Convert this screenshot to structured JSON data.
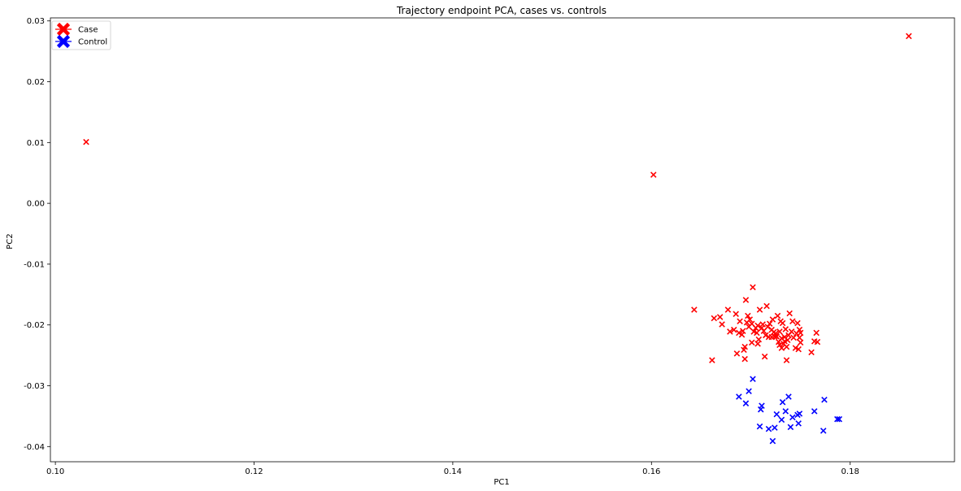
{
  "chart_data": {
    "type": "scatter",
    "title": "Trajectory endpoint PCA, cases vs. controls",
    "xlabel": "PC1",
    "ylabel": "PC2",
    "xlim": [
      0.0995,
      0.1905
    ],
    "ylim": [
      -0.0425,
      0.0305
    ],
    "xticks": [
      {
        "value": 0.1,
        "label": "0.10"
      },
      {
        "value": 0.12,
        "label": "0.12"
      },
      {
        "value": 0.14,
        "label": "0.14"
      },
      {
        "value": 0.16,
        "label": "0.16"
      },
      {
        "value": 0.18,
        "label": "0.18"
      }
    ],
    "yticks": [
      {
        "value": 0.03,
        "label": "0.03"
      },
      {
        "value": 0.02,
        "label": "0.02"
      },
      {
        "value": 0.01,
        "label": "0.01"
      },
      {
        "value": 0.0,
        "label": "0.00"
      },
      {
        "value": -0.01,
        "label": "-0.01"
      },
      {
        "value": -0.02,
        "label": "-0.02"
      },
      {
        "value": -0.03,
        "label": "-0.03"
      },
      {
        "value": -0.04,
        "label": "-0.04"
      }
    ],
    "grid": false,
    "legend_position": "top-left",
    "series": [
      {
        "name": "Case",
        "color": "#ff0000",
        "marker": "x",
        "points": [
          [
            0.1031,
            0.0101
          ],
          [
            0.1602,
            0.0047
          ],
          [
            0.1859,
            0.0275
          ],
          [
            0.1643,
            -0.0175
          ],
          [
            0.1661,
            -0.0258
          ],
          [
            0.1663,
            -0.0189
          ],
          [
            0.1669,
            -0.0187
          ],
          [
            0.1671,
            -0.0199
          ],
          [
            0.1677,
            -0.0175
          ],
          [
            0.1679,
            -0.0211
          ],
          [
            0.1683,
            -0.0208
          ],
          [
            0.1685,
            -0.0182
          ],
          [
            0.1686,
            -0.0247
          ],
          [
            0.1688,
            -0.0213
          ],
          [
            0.1689,
            -0.0194
          ],
          [
            0.1691,
            -0.0216
          ],
          [
            0.1692,
            -0.021
          ],
          [
            0.1693,
            -0.0241
          ],
          [
            0.1694,
            -0.0236
          ],
          [
            0.1694,
            -0.0256
          ],
          [
            0.1695,
            -0.0159
          ],
          [
            0.1696,
            -0.0196
          ],
          [
            0.1697,
            -0.0185
          ],
          [
            0.1698,
            -0.0203
          ],
          [
            0.1699,
            -0.0191
          ],
          [
            0.1701,
            -0.0198
          ],
          [
            0.1701,
            -0.0229
          ],
          [
            0.1702,
            -0.0138
          ],
          [
            0.1703,
            -0.0211
          ],
          [
            0.1705,
            -0.0205
          ],
          [
            0.1706,
            -0.0213
          ],
          [
            0.1707,
            -0.0231
          ],
          [
            0.1707,
            -0.0201
          ],
          [
            0.1708,
            -0.0224
          ],
          [
            0.1709,
            -0.0175
          ],
          [
            0.1711,
            -0.0205
          ],
          [
            0.1712,
            -0.0199
          ],
          [
            0.1713,
            -0.021
          ],
          [
            0.1714,
            -0.0252
          ],
          [
            0.1715,
            -0.0217
          ],
          [
            0.1716,
            -0.0169
          ],
          [
            0.1717,
            -0.0203
          ],
          [
            0.1718,
            -0.022
          ],
          [
            0.1719,
            -0.0198
          ],
          [
            0.1721,
            -0.0208
          ],
          [
            0.1721,
            -0.022
          ],
          [
            0.1722,
            -0.0191
          ],
          [
            0.1723,
            -0.0212
          ],
          [
            0.1724,
            -0.0219
          ],
          [
            0.1725,
            -0.0214
          ],
          [
            0.1726,
            -0.0219
          ],
          [
            0.1727,
            -0.0185
          ],
          [
            0.1728,
            -0.0228
          ],
          [
            0.1729,
            -0.0233
          ],
          [
            0.1729,
            -0.0211
          ],
          [
            0.173,
            -0.0194
          ],
          [
            0.1731,
            -0.0222
          ],
          [
            0.1731,
            -0.0238
          ],
          [
            0.1732,
            -0.0197
          ],
          [
            0.1733,
            -0.0231
          ],
          [
            0.1734,
            -0.0227
          ],
          [
            0.1734,
            -0.022
          ],
          [
            0.1735,
            -0.0207
          ],
          [
            0.1736,
            -0.0236
          ],
          [
            0.1736,
            -0.0258
          ],
          [
            0.1737,
            -0.0225
          ],
          [
            0.1738,
            -0.0217
          ],
          [
            0.1739,
            -0.0181
          ],
          [
            0.1741,
            -0.0211
          ],
          [
            0.1742,
            -0.0194
          ],
          [
            0.1743,
            -0.0221
          ],
          [
            0.1745,
            -0.0238
          ],
          [
            0.1746,
            -0.0214
          ],
          [
            0.1747,
            -0.0197
          ],
          [
            0.1748,
            -0.024
          ],
          [
            0.1749,
            -0.0208
          ],
          [
            0.1749,
            -0.0221
          ],
          [
            0.175,
            -0.0229
          ],
          [
            0.175,
            -0.0213
          ],
          [
            0.1761,
            -0.0245
          ],
          [
            0.1764,
            -0.0227
          ],
          [
            0.1766,
            -0.0213
          ],
          [
            0.1767,
            -0.0228
          ]
        ]
      },
      {
        "name": "Control",
        "color": "#0000ff",
        "marker": "x",
        "points": [
          [
            0.1688,
            -0.0318
          ],
          [
            0.1695,
            -0.0329
          ],
          [
            0.1698,
            -0.0309
          ],
          [
            0.1702,
            -0.0289
          ],
          [
            0.1709,
            -0.0367
          ],
          [
            0.171,
            -0.0339
          ],
          [
            0.1711,
            -0.0333
          ],
          [
            0.1718,
            -0.0371
          ],
          [
            0.1722,
            -0.0391
          ],
          [
            0.1724,
            -0.0369
          ],
          [
            0.1726,
            -0.0347
          ],
          [
            0.1731,
            -0.0356
          ],
          [
            0.1732,
            -0.0327
          ],
          [
            0.1735,
            -0.0342
          ],
          [
            0.1738,
            -0.0318
          ],
          [
            0.174,
            -0.0368
          ],
          [
            0.1742,
            -0.0352
          ],
          [
            0.1747,
            -0.0348
          ],
          [
            0.1748,
            -0.0362
          ],
          [
            0.1749,
            -0.0346
          ],
          [
            0.1764,
            -0.0342
          ],
          [
            0.1773,
            -0.0374
          ],
          [
            0.1774,
            -0.0323
          ],
          [
            0.1787,
            -0.0355
          ],
          [
            0.1789,
            -0.0355
          ]
        ]
      }
    ]
  }
}
